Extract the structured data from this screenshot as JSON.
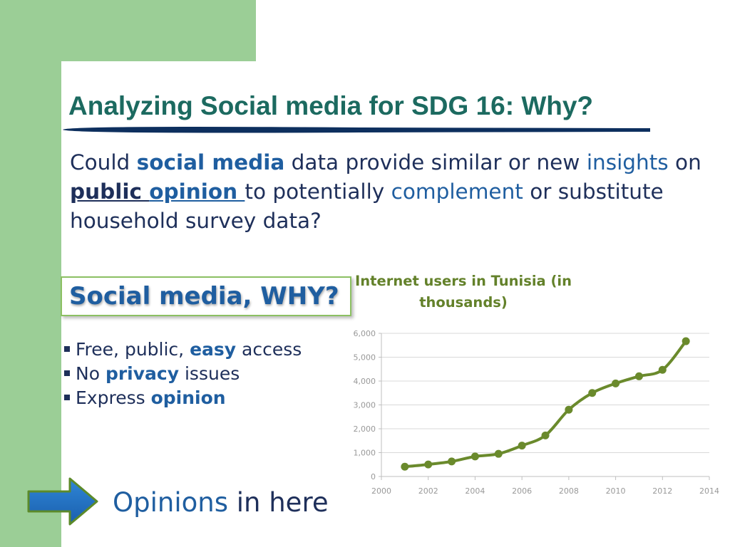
{
  "slide": {
    "title": "Analyzing Social media for SDG 16: Why?",
    "question": {
      "p1": "Could ",
      "p2": "social media",
      "p3": " data provide similar or new ",
      "p4": "insights",
      "p5": " on ",
      "p6": "public ",
      "p7": "opinion ",
      "p8": "to potentially ",
      "p9": "complement",
      "p10": " or substitute household survey data?"
    },
    "box_label": "Social media, WHY?",
    "bullets": [
      {
        "pre": "Free, public, ",
        "strong": "easy",
        "post": " access"
      },
      {
        "pre": "No ",
        "strong": "privacy",
        "post": " issues"
      },
      {
        "pre": "Express ",
        "strong": "opinion",
        "post": ""
      }
    ],
    "cta": {
      "blue": "Opinions",
      "rest": " in here"
    }
  },
  "colors": {
    "title": "#1c6a60",
    "accent_blue": "#1f5ea0",
    "body_text": "#1e2f5a",
    "green_background": "#9bce96",
    "series_line": "#6a8a2c"
  },
  "chart_data": {
    "type": "line",
    "title": "Internet users in Tunisia (in thousands)",
    "xlabel": "",
    "ylabel": "",
    "xlim": [
      2000,
      2014
    ],
    "ylim": [
      0,
      6000
    ],
    "x_ticks": [
      2000,
      2002,
      2004,
      2006,
      2008,
      2010,
      2012,
      2014
    ],
    "y_ticks": [
      0,
      1000,
      2000,
      3000,
      4000,
      5000,
      6000
    ],
    "y_tick_labels": [
      "0",
      "1,000",
      "2,000",
      "3,000",
      "4,000",
      "5,000",
      "6,000"
    ],
    "grid": "horizontal",
    "x": [
      2001,
      2002,
      2003,
      2004,
      2005,
      2006,
      2007,
      2008,
      2009,
      2010,
      2011,
      2012,
      2013
    ],
    "values": [
      410,
      505,
      630,
      840,
      950,
      1295,
      1720,
      2800,
      3500,
      3900,
      4200,
      4470,
      5670
    ]
  }
}
